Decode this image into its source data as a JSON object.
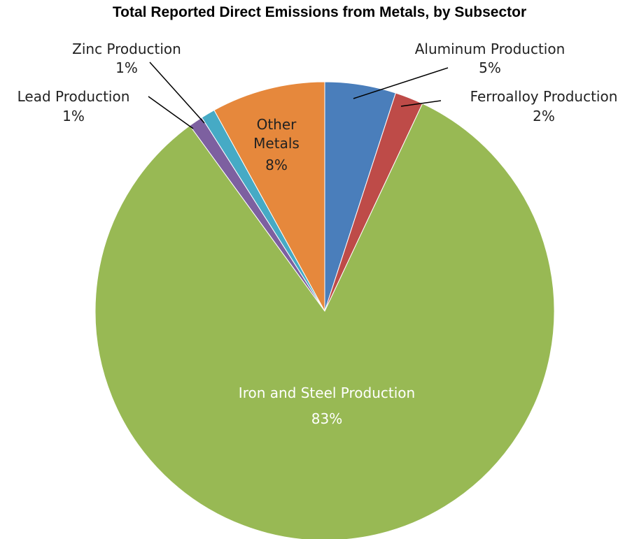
{
  "chart_data": {
    "type": "pie",
    "title": "Total Reported Direct Emissions from Metals, by Subsector",
    "slices": [
      {
        "label": "Aluminum Production",
        "value": 5,
        "display": "5%",
        "color": "#4a7ebb"
      },
      {
        "label": "Ferroalloy Production",
        "value": 2,
        "display": "2%",
        "color": "#be4b48"
      },
      {
        "label": "Iron and Steel Production",
        "value": 83,
        "display": "83%",
        "color": "#98b954"
      },
      {
        "label": "Lead Production",
        "value": 1,
        "display": "1%",
        "color": "#7d60a0"
      },
      {
        "label": "Zinc Production",
        "value": 1,
        "display": "1%",
        "color": "#46aac5"
      },
      {
        "label": "Other Metals",
        "value": 8,
        "display": "8%",
        "color": "#e6883c"
      }
    ],
    "start_angle_deg": 0,
    "direction": "clockwise",
    "legend": "none"
  }
}
